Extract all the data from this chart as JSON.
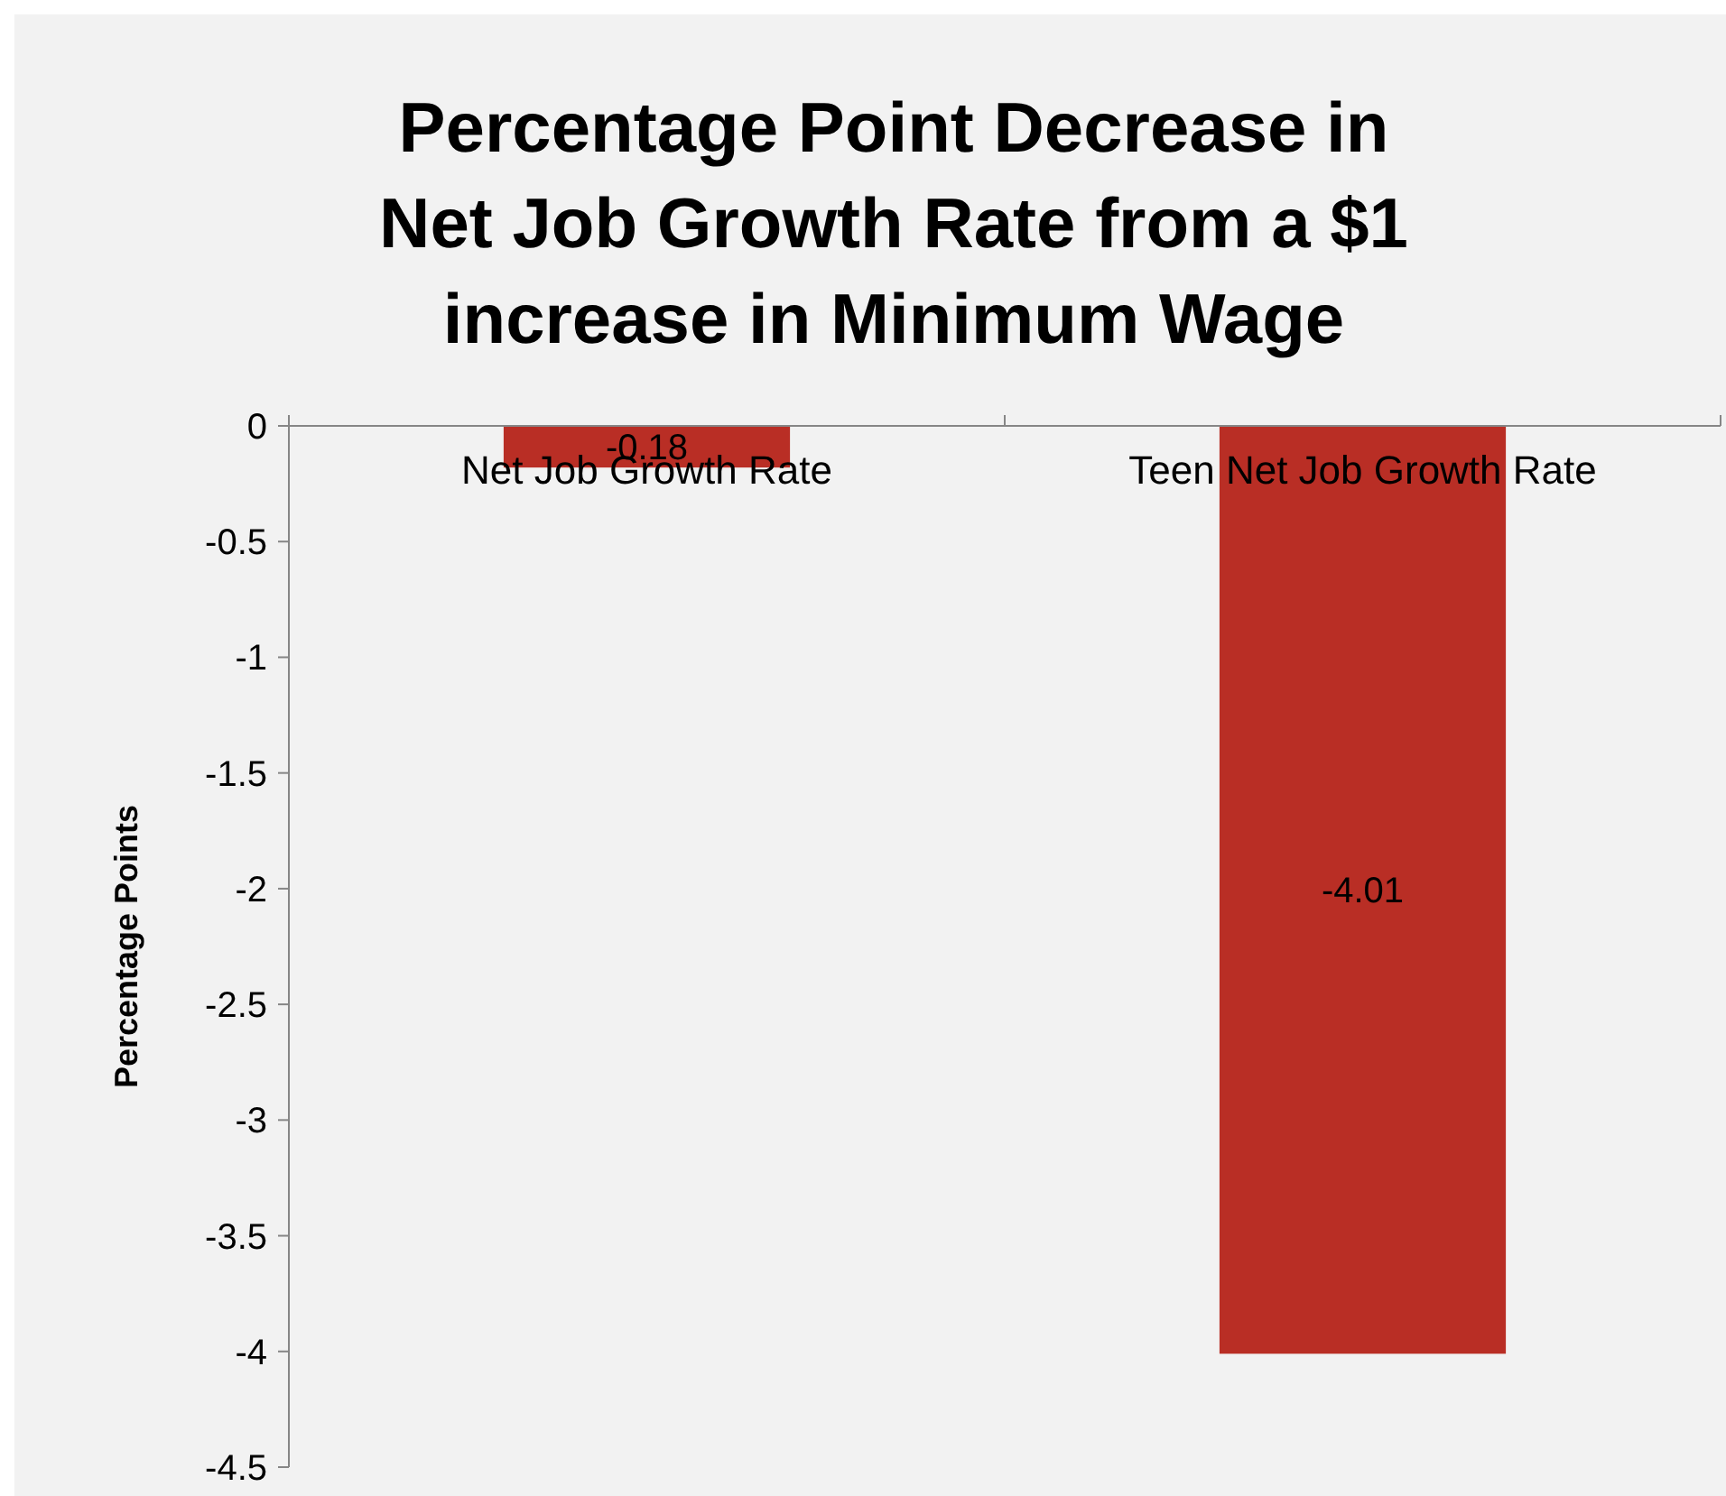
{
  "chart_data": {
    "type": "bar",
    "title": "Percentage Point Decrease in Net Job Growth Rate from a $1 increase in Minimum Wage",
    "ylabel": "Percentage Points",
    "categories": [
      "Net Job Growth Rate",
      "Teen Net Job Growth Rate"
    ],
    "values": [
      -0.18,
      -4.01
    ],
    "color": "#b92e25",
    "ylim": [
      -4.5,
      0
    ],
    "yticks": [
      0,
      -0.5,
      -1,
      -1.5,
      -2,
      -2.5,
      -3,
      -3.5,
      -4,
      -4.5
    ],
    "grid": false,
    "data_labels": true
  }
}
